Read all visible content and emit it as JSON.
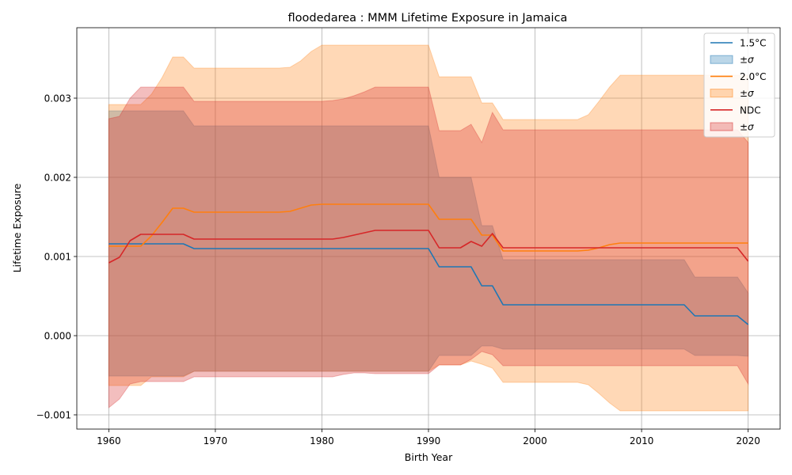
{
  "chart_data": {
    "type": "line",
    "title": "floodedarea : MMM Lifetime Exposure in Jamaica",
    "xlabel": "Birth Year",
    "ylabel": "Lifetime Exposure",
    "xlim": [
      1957,
      2023
    ],
    "ylim": [
      -0.00118,
      0.00389
    ],
    "xticks": [
      1960,
      1970,
      1980,
      1990,
      2000,
      2010,
      2020
    ],
    "xtick_labels": [
      "1960",
      "1970",
      "1980",
      "1990",
      "2000",
      "2010",
      "2020"
    ],
    "yticks": [
      -0.001,
      0,
      0.001,
      0.002,
      0.003
    ],
    "ytick_labels": [
      "−0.001",
      "0.000",
      "0.001",
      "0.002",
      "0.003"
    ],
    "grid": true,
    "legend_position": "top-right",
    "x": [
      1960,
      1961,
      1962,
      1963,
      1964,
      1965,
      1966,
      1967,
      1968,
      1969,
      1970,
      1971,
      1972,
      1973,
      1974,
      1975,
      1976,
      1977,
      1978,
      1979,
      1980,
      1981,
      1982,
      1983,
      1984,
      1985,
      1986,
      1987,
      1988,
      1989,
      1990,
      1991,
      1992,
      1993,
      1994,
      1995,
      1996,
      1997,
      1998,
      1999,
      2000,
      2001,
      2002,
      2003,
      2004,
      2005,
      2006,
      2007,
      2008,
      2009,
      2010,
      2011,
      2012,
      2013,
      2014,
      2015,
      2016,
      2017,
      2018,
      2019,
      2020
    ],
    "series": [
      {
        "name": "1.5°C",
        "band_label": "±σ",
        "color": "#1f77b4",
        "values": [
          0.00116,
          0.00116,
          0.00116,
          0.00116,
          0.00116,
          0.00116,
          0.00116,
          0.00116,
          0.0011,
          0.0011,
          0.0011,
          0.0011,
          0.0011,
          0.0011,
          0.0011,
          0.0011,
          0.0011,
          0.0011,
          0.0011,
          0.0011,
          0.0011,
          0.0011,
          0.0011,
          0.0011,
          0.0011,
          0.0011,
          0.0011,
          0.0011,
          0.0011,
          0.0011,
          0.0011,
          0.00087,
          0.00087,
          0.00087,
          0.00087,
          0.00063,
          0.00063,
          0.00039,
          0.00039,
          0.00039,
          0.00039,
          0.00039,
          0.00039,
          0.00039,
          0.00039,
          0.00039,
          0.00039,
          0.00039,
          0.00039,
          0.00039,
          0.00039,
          0.00039,
          0.00039,
          0.00039,
          0.00039,
          0.00025,
          0.00025,
          0.00025,
          0.00025,
          0.00025,
          0.00014
        ],
        "upper": [
          0.00284,
          0.00284,
          0.00284,
          0.00284,
          0.00284,
          0.00284,
          0.00284,
          0.00284,
          0.00265,
          0.00265,
          0.00265,
          0.00265,
          0.00265,
          0.00265,
          0.00265,
          0.00265,
          0.00265,
          0.00265,
          0.00265,
          0.00265,
          0.00265,
          0.00265,
          0.00265,
          0.00265,
          0.00265,
          0.00265,
          0.00265,
          0.00265,
          0.00265,
          0.00265,
          0.00265,
          0.002,
          0.002,
          0.002,
          0.002,
          0.00139,
          0.00139,
          0.00096,
          0.00096,
          0.00096,
          0.00096,
          0.00096,
          0.00096,
          0.00096,
          0.00096,
          0.00096,
          0.00096,
          0.00096,
          0.00096,
          0.00096,
          0.00096,
          0.00096,
          0.00096,
          0.00096,
          0.00096,
          0.00074,
          0.00074,
          0.00074,
          0.00074,
          0.00074,
          0.00054
        ],
        "lower": [
          -0.00051,
          -0.00051,
          -0.00051,
          -0.00051,
          -0.00051,
          -0.00051,
          -0.00051,
          -0.00051,
          -0.00045,
          -0.00045,
          -0.00045,
          -0.00045,
          -0.00045,
          -0.00045,
          -0.00045,
          -0.00045,
          -0.00045,
          -0.00045,
          -0.00045,
          -0.00045,
          -0.00045,
          -0.00045,
          -0.00045,
          -0.00045,
          -0.00045,
          -0.00045,
          -0.00045,
          -0.00045,
          -0.00045,
          -0.00045,
          -0.00045,
          -0.00025,
          -0.00025,
          -0.00025,
          -0.00025,
          -0.00013,
          -0.00013,
          -0.00017,
          -0.00017,
          -0.00017,
          -0.00017,
          -0.00017,
          -0.00017,
          -0.00017,
          -0.00017,
          -0.00017,
          -0.00017,
          -0.00017,
          -0.00017,
          -0.00017,
          -0.00017,
          -0.00017,
          -0.00017,
          -0.00017,
          -0.00017,
          -0.00025,
          -0.00025,
          -0.00025,
          -0.00025,
          -0.00025,
          -0.00026
        ]
      },
      {
        "name": "2.0°C",
        "band_label": "±σ",
        "color": "#ff7f0e",
        "values": [
          0.00113,
          0.00113,
          0.00113,
          0.00113,
          0.00126,
          0.00143,
          0.00161,
          0.00161,
          0.00156,
          0.00156,
          0.00156,
          0.00156,
          0.00156,
          0.00156,
          0.00156,
          0.00156,
          0.00156,
          0.00157,
          0.00161,
          0.00165,
          0.00166,
          0.00166,
          0.00166,
          0.00166,
          0.00166,
          0.00166,
          0.00166,
          0.00166,
          0.00166,
          0.00166,
          0.00166,
          0.00147,
          0.00147,
          0.00147,
          0.00147,
          0.00127,
          0.00127,
          0.00107,
          0.00107,
          0.00107,
          0.00107,
          0.00107,
          0.00107,
          0.00107,
          0.00107,
          0.00108,
          0.00111,
          0.00115,
          0.00117,
          0.00117,
          0.00117,
          0.00117,
          0.00117,
          0.00117,
          0.00117,
          0.00117,
          0.00117,
          0.00117,
          0.00117,
          0.00117,
          0.00117
        ],
        "upper": [
          0.00292,
          0.00292,
          0.00292,
          0.00292,
          0.00305,
          0.00326,
          0.00352,
          0.00352,
          0.00338,
          0.00338,
          0.00338,
          0.00338,
          0.00338,
          0.00338,
          0.00338,
          0.00338,
          0.00338,
          0.00339,
          0.00347,
          0.00359,
          0.00367,
          0.00367,
          0.00367,
          0.00367,
          0.00367,
          0.00367,
          0.00367,
          0.00367,
          0.00367,
          0.00367,
          0.00367,
          0.00327,
          0.00327,
          0.00327,
          0.00327,
          0.00294,
          0.00294,
          0.00273,
          0.00273,
          0.00273,
          0.00273,
          0.00273,
          0.00273,
          0.00273,
          0.00273,
          0.00279,
          0.00296,
          0.00314,
          0.00329,
          0.00329,
          0.00329,
          0.00329,
          0.00329,
          0.00329,
          0.00329,
          0.00329,
          0.00329,
          0.00329,
          0.00329,
          0.00329,
          0.00329
        ],
        "lower": [
          -0.00063,
          -0.00063,
          -0.00063,
          -0.00063,
          -0.00052,
          -0.00052,
          -0.00052,
          -0.00052,
          -0.00045,
          -0.00045,
          -0.00045,
          -0.00045,
          -0.00045,
          -0.00045,
          -0.00045,
          -0.00045,
          -0.00045,
          -0.00045,
          -0.00045,
          -0.00045,
          -0.00045,
          -0.00045,
          -0.00045,
          -0.00045,
          -0.00045,
          -0.00045,
          -0.00045,
          -0.00045,
          -0.00045,
          -0.00045,
          -0.00045,
          -0.00037,
          -0.00037,
          -0.00037,
          -0.00032,
          -0.00036,
          -0.00041,
          -0.00059,
          -0.00059,
          -0.00059,
          -0.00059,
          -0.00059,
          -0.00059,
          -0.00059,
          -0.00059,
          -0.00062,
          -0.00073,
          -0.00085,
          -0.00095,
          -0.00095,
          -0.00095,
          -0.00095,
          -0.00095,
          -0.00095,
          -0.00095,
          -0.00095,
          -0.00095,
          -0.00095,
          -0.00095,
          -0.00095,
          -0.00095
        ]
      },
      {
        "name": "NDC",
        "band_label": "±σ",
        "color": "#d62728",
        "values": [
          0.00092,
          0.00099,
          0.0012,
          0.00128,
          0.00128,
          0.00128,
          0.00128,
          0.00128,
          0.00122,
          0.00122,
          0.00122,
          0.00122,
          0.00122,
          0.00122,
          0.00122,
          0.00122,
          0.00122,
          0.00122,
          0.00122,
          0.00122,
          0.00122,
          0.00122,
          0.00124,
          0.00127,
          0.0013,
          0.00133,
          0.00133,
          0.00133,
          0.00133,
          0.00133,
          0.00133,
          0.00111,
          0.00111,
          0.00111,
          0.00119,
          0.00113,
          0.00129,
          0.00111,
          0.00111,
          0.00111,
          0.00111,
          0.00111,
          0.00111,
          0.00111,
          0.00111,
          0.00111,
          0.00111,
          0.00111,
          0.00111,
          0.00111,
          0.00111,
          0.00111,
          0.00111,
          0.00111,
          0.00111,
          0.00111,
          0.00111,
          0.00111,
          0.00111,
          0.00111,
          0.00094
        ],
        "upper": [
          0.00274,
          0.00277,
          0.003,
          0.00314,
          0.00314,
          0.00314,
          0.00314,
          0.00314,
          0.00296,
          0.00296,
          0.00296,
          0.00296,
          0.00296,
          0.00296,
          0.00296,
          0.00296,
          0.00296,
          0.00296,
          0.00296,
          0.00296,
          0.00296,
          0.00297,
          0.00299,
          0.00303,
          0.00308,
          0.00314,
          0.00314,
          0.00314,
          0.00314,
          0.00314,
          0.00314,
          0.00259,
          0.00259,
          0.00259,
          0.00267,
          0.00244,
          0.00282,
          0.0026,
          0.0026,
          0.0026,
          0.0026,
          0.0026,
          0.0026,
          0.0026,
          0.0026,
          0.0026,
          0.0026,
          0.0026,
          0.0026,
          0.0026,
          0.0026,
          0.0026,
          0.0026,
          0.0026,
          0.0026,
          0.0026,
          0.0026,
          0.0026,
          0.0026,
          0.0026,
          0.00244
        ],
        "lower": [
          -0.00091,
          -0.0008,
          -0.00061,
          -0.00058,
          -0.00058,
          -0.00058,
          -0.00058,
          -0.00058,
          -0.00052,
          -0.00052,
          -0.00052,
          -0.00052,
          -0.00052,
          -0.00052,
          -0.00052,
          -0.00052,
          -0.00052,
          -0.00052,
          -0.00052,
          -0.00052,
          -0.00052,
          -0.00052,
          -0.00049,
          -0.00047,
          -0.00047,
          -0.00048,
          -0.00048,
          -0.00048,
          -0.00048,
          -0.00048,
          -0.00048,
          -0.00037,
          -0.00037,
          -0.00037,
          -0.0003,
          -0.0002,
          -0.00024,
          -0.00038,
          -0.00038,
          -0.00038,
          -0.00038,
          -0.00038,
          -0.00038,
          -0.00038,
          -0.00038,
          -0.00038,
          -0.00038,
          -0.00038,
          -0.00038,
          -0.00038,
          -0.00038,
          -0.00038,
          -0.00038,
          -0.00038,
          -0.00038,
          -0.00038,
          -0.00038,
          -0.00038,
          -0.00038,
          -0.00038,
          -0.00061
        ]
      }
    ]
  }
}
